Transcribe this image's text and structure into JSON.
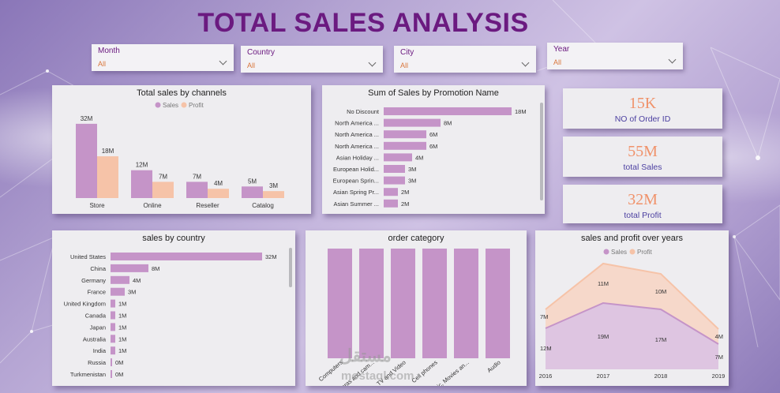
{
  "title": "TOTAL SALES ANALYSIS",
  "colors": {
    "sales": "#c594c8",
    "profit": "#f6c3a8",
    "title": "#6b1a80",
    "kpi_num": "#f0926a"
  },
  "slicers": [
    {
      "label": "Month",
      "value": "All"
    },
    {
      "label": "Country",
      "value": "All"
    },
    {
      "label": "City",
      "value": "All"
    },
    {
      "label": "Year",
      "value": "All"
    }
  ],
  "kpis": [
    {
      "value": "15K",
      "caption": "NO of Order ID"
    },
    {
      "value": "55M",
      "caption": "total Sales"
    },
    {
      "value": "32M",
      "caption": "total Profit"
    }
  ],
  "watermark": {
    "arabic": "مستقل",
    "latin": "mostaql.com"
  },
  "chart_data": [
    {
      "id": "channels",
      "type": "bar",
      "title": "Total sales by channels",
      "legend": [
        "Sales",
        "Profit"
      ],
      "categories": [
        "Store",
        "Online",
        "Reseller",
        "Catalog"
      ],
      "series": [
        {
          "name": "Sales",
          "values": [
            32,
            12,
            7,
            5
          ],
          "labels": [
            "32M",
            "12M",
            "7M",
            "5M"
          ]
        },
        {
          "name": "Profit",
          "values": [
            18,
            7,
            4,
            3
          ],
          "labels": [
            "18M",
            "7M",
            "4M",
            "3M"
          ]
        }
      ],
      "ylim": [
        0,
        34
      ]
    },
    {
      "id": "promotion",
      "type": "bar",
      "orientation": "horizontal",
      "title": "Sum of Sales by Promotion Name",
      "categories": [
        "No Discount",
        "North America ...",
        "North America ...",
        "North America ...",
        "Asian Holiday ...",
        "European Holid...",
        "European Sprin...",
        "Asian Spring Pr...",
        "Asian Summer ..."
      ],
      "values": [
        18,
        8,
        6,
        6,
        4,
        3,
        3,
        2,
        2
      ],
      "labels": [
        "18M",
        "8M",
        "6M",
        "6M",
        "4M",
        "3M",
        "3M",
        "2M",
        "2M"
      ],
      "xlim": [
        0,
        18
      ]
    },
    {
      "id": "country",
      "type": "bar",
      "orientation": "horizontal",
      "title": "sales by country",
      "categories": [
        "United States",
        "China",
        "Germany",
        "France",
        "United Kingdom",
        "Canada",
        "Japan",
        "Australia",
        "India",
        "Russia",
        "Turkmenistan"
      ],
      "values": [
        32,
        8,
        4,
        3,
        1,
        1,
        1,
        1,
        1,
        0.2,
        0.1
      ],
      "labels": [
        "32M",
        "8M",
        "4M",
        "3M",
        "1M",
        "1M",
        "1M",
        "1M",
        "1M",
        "0M",
        "0M"
      ],
      "xlim": [
        0,
        32
      ]
    },
    {
      "id": "category",
      "type": "bar",
      "title": "order category",
      "categories": [
        "Computers",
        "Cameras and cam...",
        "TV and Video",
        "Cell phones",
        "Music, Movies an...",
        "Audio"
      ],
      "values": [
        1,
        1,
        1,
        1,
        1,
        1
      ]
    },
    {
      "id": "years",
      "type": "area",
      "title": "sales and profit over years",
      "legend": [
        "Sales",
        "Profit"
      ],
      "x": [
        "2016",
        "2017",
        "2018",
        "2019"
      ],
      "series": [
        {
          "name": "Sales",
          "values": [
            12,
            19,
            17,
            7
          ],
          "labels": [
            "12M",
            "19M",
            "17M",
            "7M"
          ]
        },
        {
          "name": "Profit",
          "values": [
            7,
            11,
            10,
            4
          ],
          "labels": [
            "7M",
            "11M",
            "10M",
            "4M"
          ]
        }
      ]
    }
  ]
}
